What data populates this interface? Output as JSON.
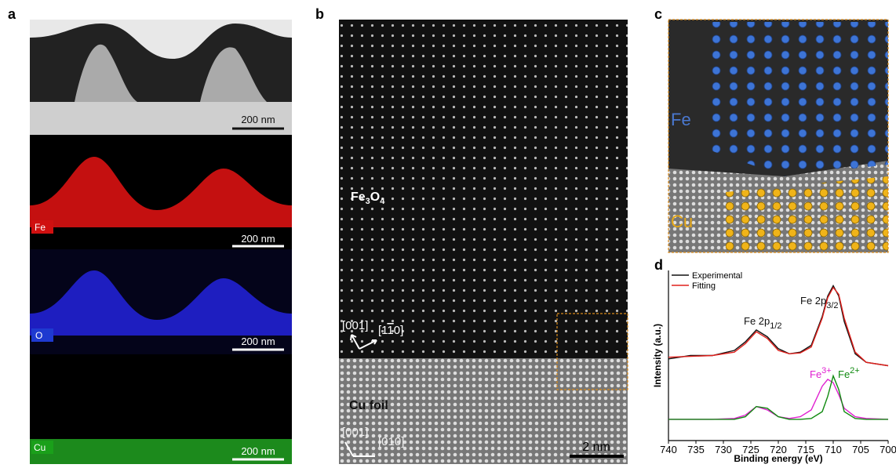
{
  "panels": {
    "a": {
      "label": "a",
      "scale_bars": [
        "200 nm",
        "200 nm",
        "200 nm",
        "200 nm"
      ],
      "maps": [
        "Fe",
        "O",
        "Cu"
      ]
    },
    "b": {
      "label": "b",
      "phase": [
        "Fe",
        "3",
        "O",
        "4"
      ],
      "top_dirs": [
        "[001]",
        "[1",
        "1",
        "0]"
      ],
      "substrate": "Cu foil",
      "bottom_dirs": [
        "[001]",
        "[010]"
      ],
      "scale_bar": "2 nm"
    },
    "c": {
      "label": "c",
      "fe": "Fe",
      "cu": "Cu"
    },
    "d": {
      "label": "d"
    }
  },
  "chart_data": {
    "type": "line",
    "xlabel": "Binding energy (eV)",
    "ylabel": "Intensity (a.u.)",
    "x": [
      740,
      736,
      732,
      728,
      726,
      724,
      722,
      720,
      718,
      716,
      714,
      712,
      711,
      710,
      709,
      708,
      706,
      704,
      700
    ],
    "xlim": [
      740,
      700
    ],
    "xticks": [
      740,
      735,
      730,
      725,
      720,
      715,
      710,
      705,
      700
    ],
    "ylim": [
      0,
      100
    ],
    "series": [
      {
        "name": "Experimental",
        "color": "#111111",
        "values": [
          48,
          50,
          50,
          53,
          58,
          65,
          61,
          54,
          51,
          52,
          56,
          73,
          85,
          91,
          85,
          70,
          51,
          46,
          44
        ]
      },
      {
        "name": "Fitting",
        "color": "#e0201c",
        "values": [
          49,
          49.5,
          50,
          52,
          57,
          64,
          60,
          53,
          51,
          51.5,
          55,
          72,
          84,
          90,
          86,
          72,
          52,
          46,
          44
        ]
      },
      {
        "color": "#e020d0",
        "values": [
          12.5,
          12.5,
          12.5,
          13,
          15,
          20,
          18,
          14,
          13,
          14,
          18,
          32,
          36,
          34,
          27,
          19,
          14,
          13,
          12.5
        ]
      },
      {
        "color": "#108a10",
        "values": [
          12.5,
          12.5,
          12.5,
          12.5,
          14,
          20,
          19,
          14,
          12.5,
          12.5,
          13,
          17,
          26,
          38,
          30,
          17,
          13,
          12.5,
          12.5
        ]
      }
    ],
    "annotations": [
      [
        "Fe 2p",
        "1/2"
      ],
      [
        "Fe 2p",
        "3/2"
      ],
      [
        "Fe",
        "3+"
      ],
      [
        "Fe",
        "2+"
      ]
    ],
    "annotation_colors": [
      "#111111",
      "#111111",
      "#e020d0",
      "#108a10"
    ]
  }
}
